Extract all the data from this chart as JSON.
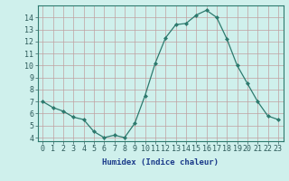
{
  "x": [
    0,
    1,
    2,
    3,
    4,
    5,
    6,
    7,
    8,
    9,
    10,
    11,
    12,
    13,
    14,
    15,
    16,
    17,
    18,
    19,
    20,
    21,
    22,
    23
  ],
  "y": [
    7.0,
    6.5,
    6.2,
    5.7,
    5.5,
    4.5,
    4.0,
    4.2,
    4.0,
    5.2,
    7.5,
    10.2,
    12.3,
    13.4,
    13.5,
    14.2,
    14.6,
    14.0,
    12.2,
    10.0,
    8.5,
    7.0,
    5.8,
    5.5
  ],
  "line_color": "#2d7a6e",
  "marker": "D",
  "marker_size": 2,
  "bg_color": "#cff0ec",
  "grid_color": "#c0a0a0",
  "xlabel": "Humidex (Indice chaleur)",
  "xlim": [
    -0.5,
    23.5
  ],
  "ylim": [
    3.7,
    15.0
  ],
  "yticks": [
    4,
    5,
    6,
    7,
    8,
    9,
    10,
    11,
    12,
    13,
    14
  ],
  "xticks": [
    0,
    1,
    2,
    3,
    4,
    5,
    6,
    7,
    8,
    9,
    10,
    11,
    12,
    13,
    14,
    15,
    16,
    17,
    18,
    19,
    20,
    21,
    22,
    23
  ],
  "xlabel_fontsize": 6.5,
  "tick_fontsize": 6,
  "xlabel_color": "#1a3a8a",
  "tick_color": "#2d5a5a"
}
